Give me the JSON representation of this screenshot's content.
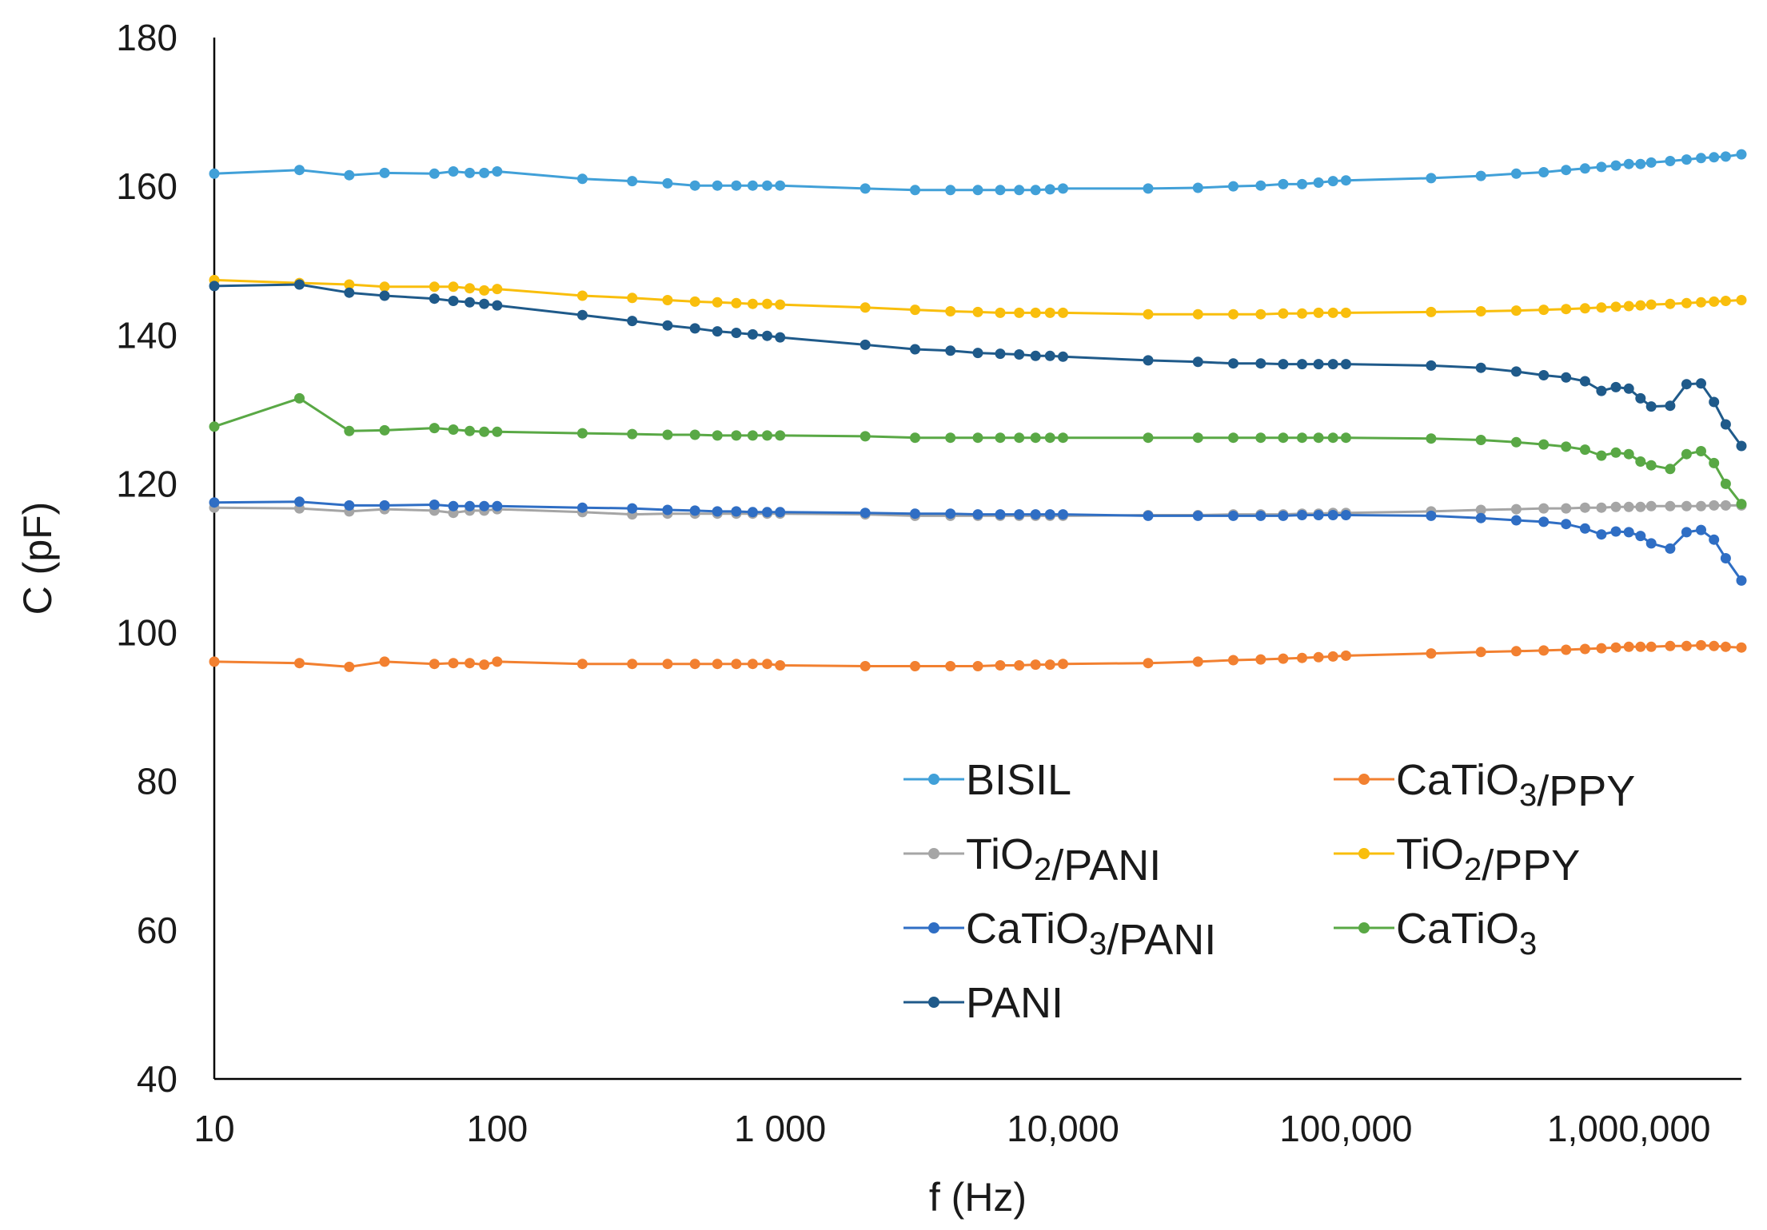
{
  "chart_data": {
    "type": "line",
    "x_scale": "log",
    "xlabel": "f (Hz)",
    "ylabel": "C (pF)",
    "ylim": [
      40,
      180
    ],
    "xlim": [
      10,
      2500000
    ],
    "y_ticks": [
      40,
      60,
      80,
      100,
      120,
      140,
      160,
      180
    ],
    "x_ticks": [
      10,
      100,
      1000,
      10000,
      100000,
      1000000
    ],
    "x_tick_labels": [
      "10",
      "100",
      "1 000",
      "10,000",
      "100,000",
      "1,000,000"
    ],
    "grid": false,
    "legend_position": "bottom-right",
    "series": [
      {
        "name": "BISIL",
        "name_parts": [
          [
            "BISIL",
            ""
          ]
        ],
        "color": "#41A0D8",
        "x": [
          10,
          20,
          30,
          40,
          60,
          70,
          80,
          90,
          100,
          200,
          300,
          400,
          500,
          600,
          700,
          800,
          900,
          1000,
          2000,
          3000,
          4000,
          5000,
          6000,
          7000,
          8000,
          9000,
          10000,
          20000,
          30000,
          40000,
          50000,
          60000,
          70000,
          80000,
          90000,
          100000,
          200000,
          300000,
          400000,
          500000,
          600000,
          700000,
          800000,
          900000,
          1000000,
          1100000,
          1200000,
          1400000,
          1600000,
          1800000,
          2000000,
          2200000,
          2500000
        ],
        "y": [
          161.7,
          162.2,
          161.5,
          161.8,
          161.7,
          162.0,
          161.8,
          161.8,
          162.0,
          161.0,
          160.7,
          160.4,
          160.1,
          160.1,
          160.1,
          160.1,
          160.1,
          160.1,
          159.7,
          159.5,
          159.5,
          159.5,
          159.5,
          159.5,
          159.5,
          159.6,
          159.7,
          159.7,
          159.8,
          160.0,
          160.1,
          160.3,
          160.3,
          160.5,
          160.7,
          160.8,
          161.1,
          161.4,
          161.7,
          161.9,
          162.2,
          162.4,
          162.6,
          162.8,
          163.0,
          163.0,
          163.2,
          163.4,
          163.6,
          163.8,
          163.9,
          164.0,
          164.3
        ]
      },
      {
        "name": "CaTiO3/PPY",
        "name_parts": [
          [
            "CaTiO",
            ""
          ],
          [
            "3",
            "sub"
          ],
          [
            "/PPY",
            ""
          ]
        ],
        "color": "#F28030",
        "x": [
          10,
          20,
          30,
          40,
          60,
          70,
          80,
          90,
          100,
          200,
          300,
          400,
          500,
          600,
          700,
          800,
          900,
          1000,
          2000,
          3000,
          4000,
          5000,
          6000,
          7000,
          8000,
          9000,
          10000,
          20000,
          30000,
          40000,
          50000,
          60000,
          70000,
          80000,
          90000,
          100000,
          200000,
          300000,
          400000,
          500000,
          600000,
          700000,
          800000,
          900000,
          1000000,
          1100000,
          1200000,
          1400000,
          1600000,
          1800000,
          2000000,
          2200000,
          2500000
        ],
        "y": [
          96.1,
          95.9,
          95.4,
          96.1,
          95.8,
          95.9,
          95.9,
          95.7,
          96.1,
          95.8,
          95.8,
          95.8,
          95.8,
          95.8,
          95.8,
          95.8,
          95.8,
          95.6,
          95.5,
          95.5,
          95.5,
          95.5,
          95.6,
          95.6,
          95.7,
          95.7,
          95.8,
          95.9,
          96.1,
          96.3,
          96.4,
          96.5,
          96.6,
          96.7,
          96.8,
          96.9,
          97.2,
          97.4,
          97.5,
          97.6,
          97.7,
          97.8,
          97.9,
          98.0,
          98.1,
          98.1,
          98.1,
          98.2,
          98.2,
          98.3,
          98.2,
          98.1,
          98.0
        ]
      },
      {
        "name": "TiO2/PANI",
        "name_parts": [
          [
            "TiO",
            ""
          ],
          [
            "2",
            "sub"
          ],
          [
            "/PANI",
            ""
          ]
        ],
        "color": "#A5A5A5",
        "x": [
          10,
          20,
          30,
          40,
          60,
          70,
          80,
          90,
          100,
          200,
          300,
          400,
          500,
          600,
          700,
          800,
          900,
          1000,
          2000,
          3000,
          4000,
          5000,
          6000,
          7000,
          8000,
          9000,
          10000,
          20000,
          30000,
          40000,
          50000,
          60000,
          70000,
          80000,
          90000,
          100000,
          200000,
          300000,
          400000,
          500000,
          600000,
          700000,
          800000,
          900000,
          1000000,
          1100000,
          1200000,
          1400000,
          1600000,
          1800000,
          2000000,
          2200000,
          2500000
        ],
        "y": [
          116.8,
          116.7,
          116.3,
          116.6,
          116.4,
          116.1,
          116.4,
          116.4,
          116.6,
          116.2,
          115.9,
          116.0,
          116.0,
          116.0,
          116.0,
          116.0,
          116.0,
          116.0,
          115.9,
          115.7,
          115.7,
          115.7,
          115.7,
          115.7,
          115.7,
          115.7,
          115.7,
          115.8,
          115.8,
          115.9,
          115.9,
          115.9,
          116.0,
          116.0,
          116.1,
          116.1,
          116.3,
          116.5,
          116.6,
          116.7,
          116.7,
          116.8,
          116.8,
          116.9,
          116.9,
          116.9,
          117.0,
          117.0,
          117.0,
          117.0,
          117.1,
          117.1,
          117.1
        ]
      },
      {
        "name": "TiO2/PPY",
        "name_parts": [
          [
            "TiO",
            ""
          ],
          [
            "2",
            "sub"
          ],
          [
            "/PPY",
            ""
          ]
        ],
        "color": "#F9BE0C",
        "x": [
          10,
          20,
          30,
          40,
          60,
          70,
          80,
          90,
          100,
          200,
          300,
          400,
          500,
          600,
          700,
          800,
          900,
          1000,
          2000,
          3000,
          4000,
          5000,
          6000,
          7000,
          8000,
          9000,
          10000,
          20000,
          30000,
          40000,
          50000,
          60000,
          70000,
          80000,
          90000,
          100000,
          200000,
          300000,
          400000,
          500000,
          600000,
          700000,
          800000,
          900000,
          1000000,
          1100000,
          1200000,
          1400000,
          1600000,
          1800000,
          2000000,
          2200000,
          2500000
        ],
        "y": [
          147.4,
          147.0,
          146.8,
          146.5,
          146.5,
          146.5,
          146.3,
          146.0,
          146.2,
          145.3,
          145.0,
          144.7,
          144.5,
          144.4,
          144.3,
          144.2,
          144.2,
          144.1,
          143.7,
          143.4,
          143.2,
          143.1,
          143.0,
          143.0,
          143.0,
          143.0,
          143.0,
          142.8,
          142.8,
          142.8,
          142.8,
          142.9,
          142.9,
          143.0,
          143.0,
          143.0,
          143.1,
          143.2,
          143.3,
          143.4,
          143.5,
          143.6,
          143.7,
          143.8,
          143.9,
          144.0,
          144.1,
          144.2,
          144.3,
          144.4,
          144.5,
          144.6,
          144.7
        ]
      },
      {
        "name": "CaTiO3/PANI",
        "name_parts": [
          [
            "CaTiO",
            ""
          ],
          [
            "3",
            "sub"
          ],
          [
            "/PANI",
            ""
          ]
        ],
        "color": "#2F6EC4",
        "x": [
          10,
          20,
          30,
          40,
          60,
          70,
          80,
          90,
          100,
          200,
          300,
          400,
          500,
          600,
          700,
          800,
          900,
          1000,
          2000,
          3000,
          4000,
          5000,
          6000,
          7000,
          8000,
          9000,
          10000,
          20000,
          30000,
          40000,
          50000,
          60000,
          70000,
          80000,
          90000,
          100000,
          200000,
          300000,
          400000,
          500000,
          600000,
          700000,
          800000,
          900000,
          1000000,
          1100000,
          1200000,
          1400000,
          1600000,
          1800000,
          2000000,
          2200000,
          2500000
        ],
        "y": [
          117.5,
          117.6,
          117.1,
          117.1,
          117.2,
          117.0,
          117.0,
          117.0,
          117.0,
          116.8,
          116.7,
          116.5,
          116.4,
          116.3,
          116.3,
          116.2,
          116.2,
          116.2,
          116.1,
          116.0,
          116.0,
          115.9,
          115.9,
          115.9,
          115.9,
          115.9,
          115.9,
          115.7,
          115.7,
          115.7,
          115.7,
          115.7,
          115.8,
          115.8,
          115.8,
          115.8,
          115.7,
          115.4,
          115.1,
          114.9,
          114.6,
          114.0,
          113.2,
          113.6,
          113.5,
          113.0,
          112.0,
          111.3,
          113.5,
          113.8,
          112.5,
          110.0,
          107.0
        ]
      },
      {
        "name": "CaTiO3",
        "name_parts": [
          [
            "CaTiO",
            ""
          ],
          [
            "3",
            "sub"
          ]
        ],
        "color": "#59A845",
        "x": [
          10,
          20,
          30,
          40,
          60,
          70,
          80,
          90,
          100,
          200,
          300,
          400,
          500,
          600,
          700,
          800,
          900,
          1000,
          2000,
          3000,
          4000,
          5000,
          6000,
          7000,
          8000,
          9000,
          10000,
          20000,
          30000,
          40000,
          50000,
          60000,
          70000,
          80000,
          90000,
          100000,
          200000,
          300000,
          400000,
          500000,
          600000,
          700000,
          800000,
          900000,
          1000000,
          1100000,
          1200000,
          1400000,
          1600000,
          1800000,
          2000000,
          2200000,
          2500000
        ],
        "y": [
          127.7,
          131.5,
          127.1,
          127.2,
          127.5,
          127.3,
          127.1,
          127.0,
          127.0,
          126.8,
          126.7,
          126.6,
          126.6,
          126.5,
          126.5,
          126.5,
          126.5,
          126.5,
          126.4,
          126.2,
          126.2,
          126.2,
          126.2,
          126.2,
          126.2,
          126.2,
          126.2,
          126.2,
          126.2,
          126.2,
          126.2,
          126.2,
          126.2,
          126.2,
          126.2,
          126.2,
          126.1,
          125.9,
          125.6,
          125.3,
          125.0,
          124.6,
          123.8,
          124.2,
          124.0,
          123.0,
          122.5,
          122.0,
          124.0,
          124.4,
          122.8,
          120.0,
          117.3
        ]
      },
      {
        "name": "PANI",
        "name_parts": [
          [
            "PANI",
            ""
          ]
        ],
        "color": "#1F5A8A",
        "x": [
          10,
          20,
          30,
          40,
          60,
          70,
          80,
          90,
          100,
          200,
          300,
          400,
          500,
          600,
          700,
          800,
          900,
          1000,
          2000,
          3000,
          4000,
          5000,
          6000,
          7000,
          8000,
          9000,
          10000,
          20000,
          30000,
          40000,
          50000,
          60000,
          70000,
          80000,
          90000,
          100000,
          200000,
          300000,
          400000,
          500000,
          600000,
          700000,
          800000,
          900000,
          1000000,
          1100000,
          1200000,
          1400000,
          1600000,
          1800000,
          2000000,
          2200000,
          2500000
        ],
        "y": [
          146.6,
          146.8,
          145.7,
          145.3,
          144.9,
          144.6,
          144.4,
          144.2,
          144.0,
          142.7,
          141.9,
          141.3,
          140.9,
          140.5,
          140.3,
          140.1,
          139.9,
          139.7,
          138.7,
          138.1,
          137.9,
          137.6,
          137.5,
          137.4,
          137.2,
          137.2,
          137.1,
          136.6,
          136.4,
          136.2,
          136.2,
          136.1,
          136.1,
          136.1,
          136.1,
          136.1,
          135.9,
          135.6,
          135.1,
          134.6,
          134.3,
          133.8,
          132.5,
          133.0,
          132.8,
          131.5,
          130.4,
          130.5,
          133.4,
          133.5,
          131.0,
          128.0,
          125.1
        ]
      }
    ]
  }
}
